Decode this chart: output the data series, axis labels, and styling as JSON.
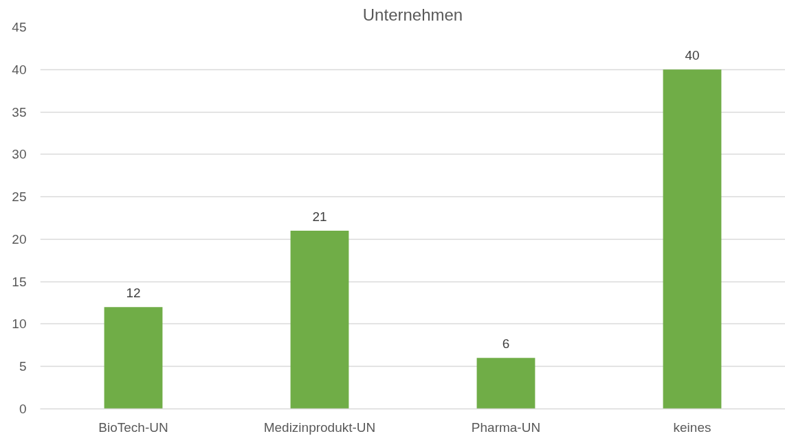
{
  "chart_data": {
    "type": "bar",
    "title": "Unternehmen",
    "categories": [
      "BioTech-UN",
      "Medizinprodukt-UN",
      "Pharma-UN",
      "keines"
    ],
    "values": [
      12,
      21,
      6,
      40
    ],
    "color": "#70ad47",
    "ylim": [
      0,
      45
    ],
    "yticks": [
      0,
      5,
      10,
      15,
      20,
      25,
      30,
      35,
      40,
      45
    ],
    "grid": "y",
    "data_labels": true
  }
}
